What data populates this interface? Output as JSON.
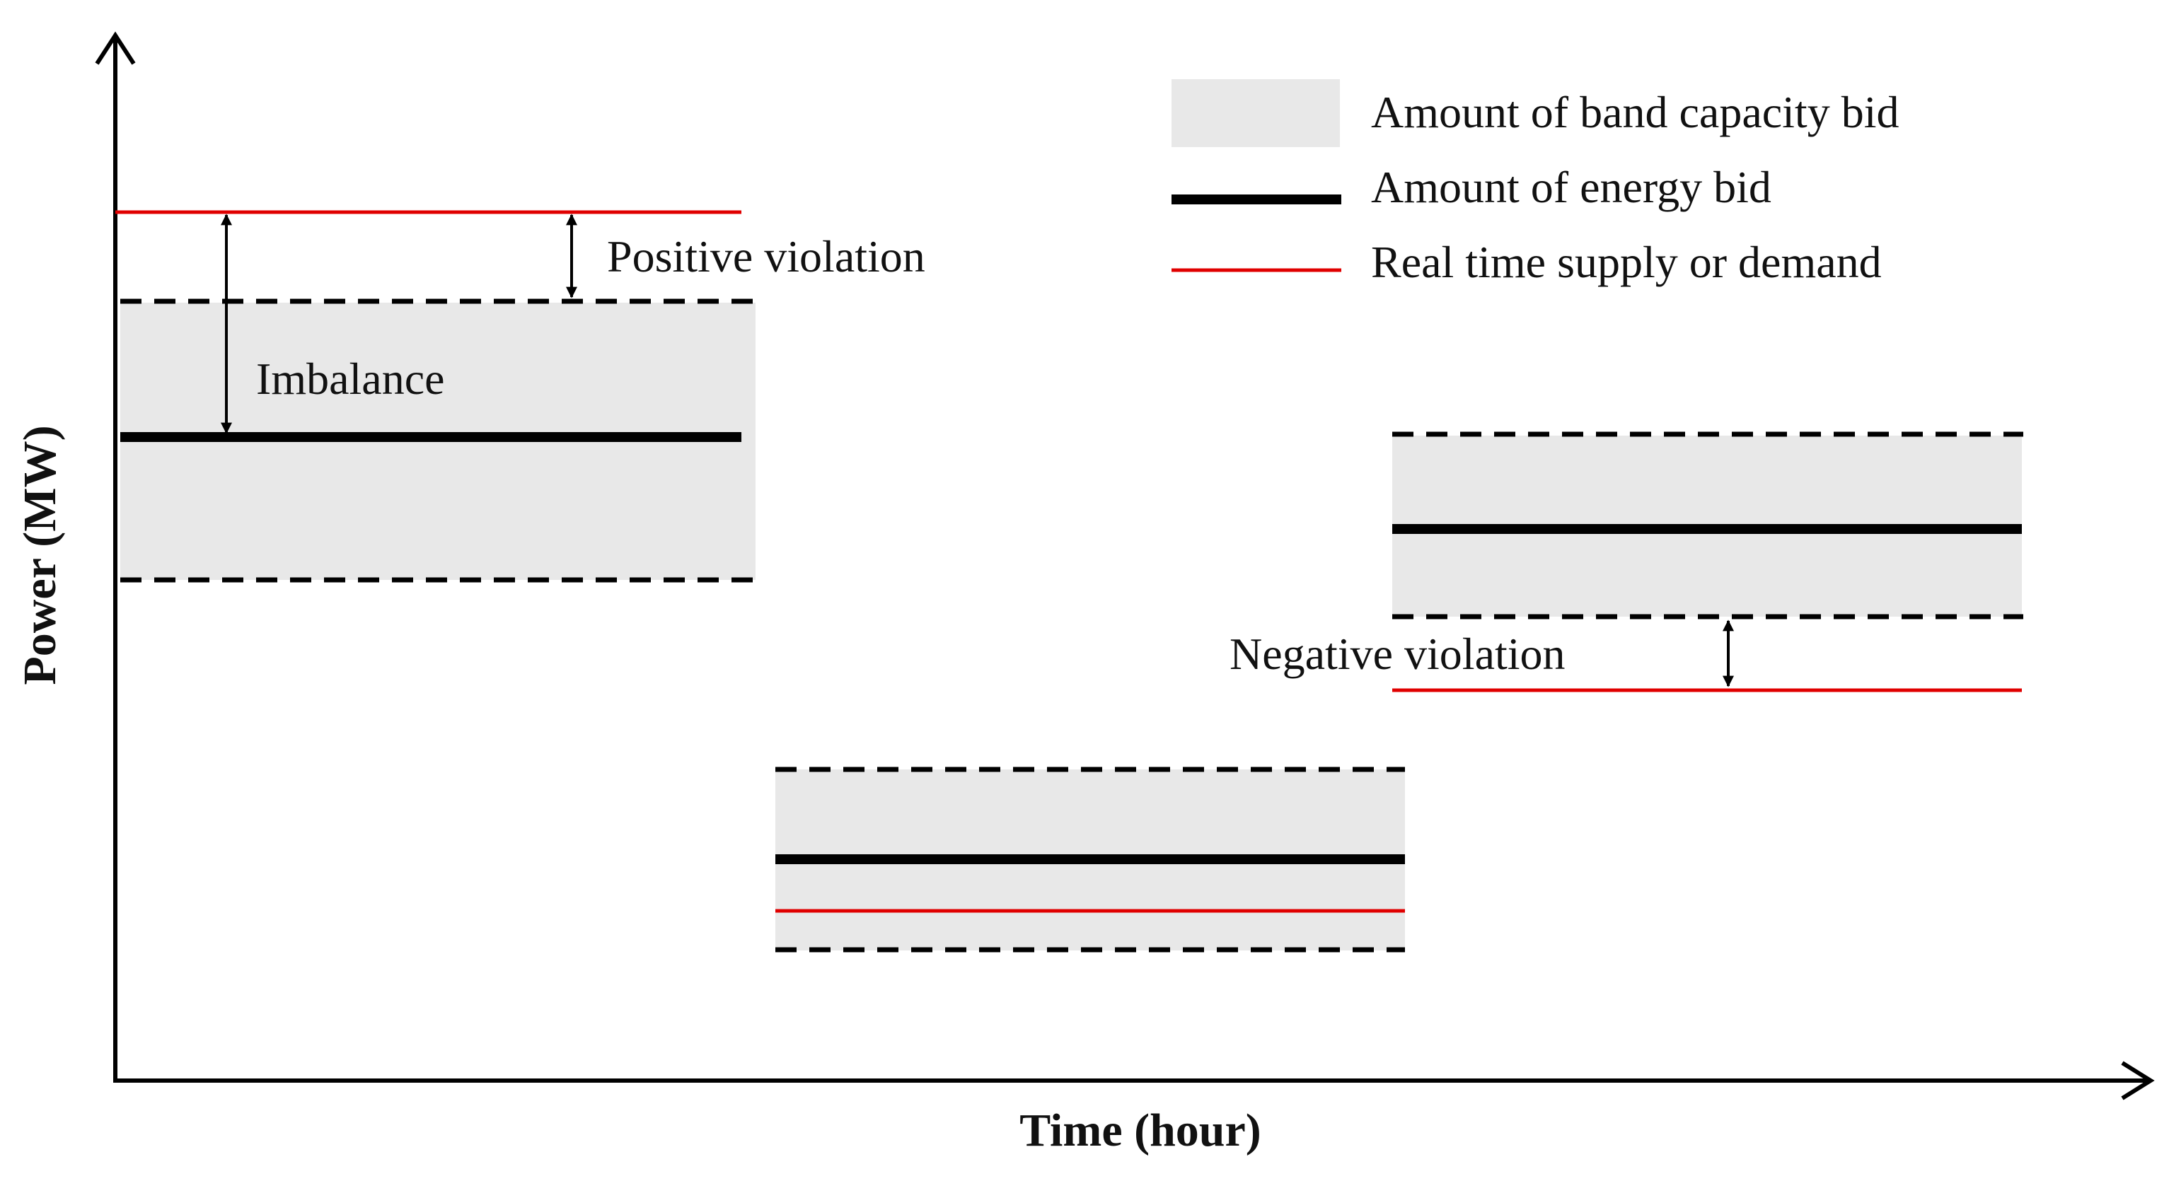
{
  "legend": {
    "band_capacity_label": "Amount of band capacity bid",
    "energy_bid_label": "Amount of energy bid",
    "real_time_label": "Real time supply or demand"
  },
  "annotations": {
    "positive_violation": "Positive violation",
    "imbalance": "Imbalance",
    "negative_violation": "Negative violation"
  },
  "axes": {
    "x_label": "Time (hour)",
    "y_label": "Power (MW)"
  },
  "colors": {
    "band_fill": "#e8e8e8",
    "energy_line": "#000000",
    "real_time_line": "#e00000"
  }
}
